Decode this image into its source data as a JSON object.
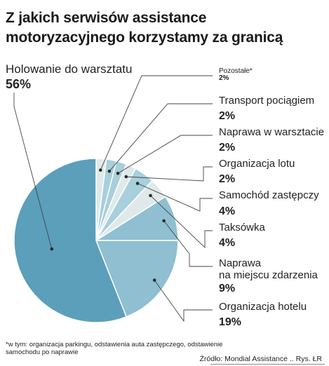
{
  "title": "Z jakich serwisów assistance motoryzacyjnego korzystamy za granicą",
  "footnote": "*w tym: organizacja parkingu, odstawienia auta zastępczego, odstawienie samochodu po naprawie",
  "source": "Źródło: Mondial Assistance .. Rys. ŁR",
  "colors": {
    "dark_blue": "#5b9fbb",
    "mid_blue": "#8fbfd1",
    "light_blue": "#a8cfdc",
    "pale_grey": "#dfe9ea",
    "leader": "#444444"
  },
  "chart_data": {
    "type": "pie",
    "title": "Z jakich serwisów assistance motoryzacyjnego korzystamy za granicą",
    "unit": "%",
    "slices": [
      {
        "name": "Pozostałe*",
        "value": 2,
        "label": "2%"
      },
      {
        "name": "Transport pociągiem",
        "value": 2,
        "label": "2%"
      },
      {
        "name": "Naprawa w warsztacie",
        "value": 2,
        "label": "2%"
      },
      {
        "name": "Organizacja lotu",
        "value": 2,
        "label": "2%"
      },
      {
        "name": "Samochód zastępczy",
        "value": 4,
        "label": "4%"
      },
      {
        "name": "Taksówka",
        "value": 4,
        "label": "4%"
      },
      {
        "name": "Naprawa\nna miejscu zdarzenia",
        "value": 9,
        "label": "9%"
      },
      {
        "name": "Organizacja hotelu",
        "value": 19,
        "label": "19%"
      },
      {
        "name": "Holowanie do warsztatu",
        "value": 56,
        "label": "56%"
      }
    ]
  }
}
